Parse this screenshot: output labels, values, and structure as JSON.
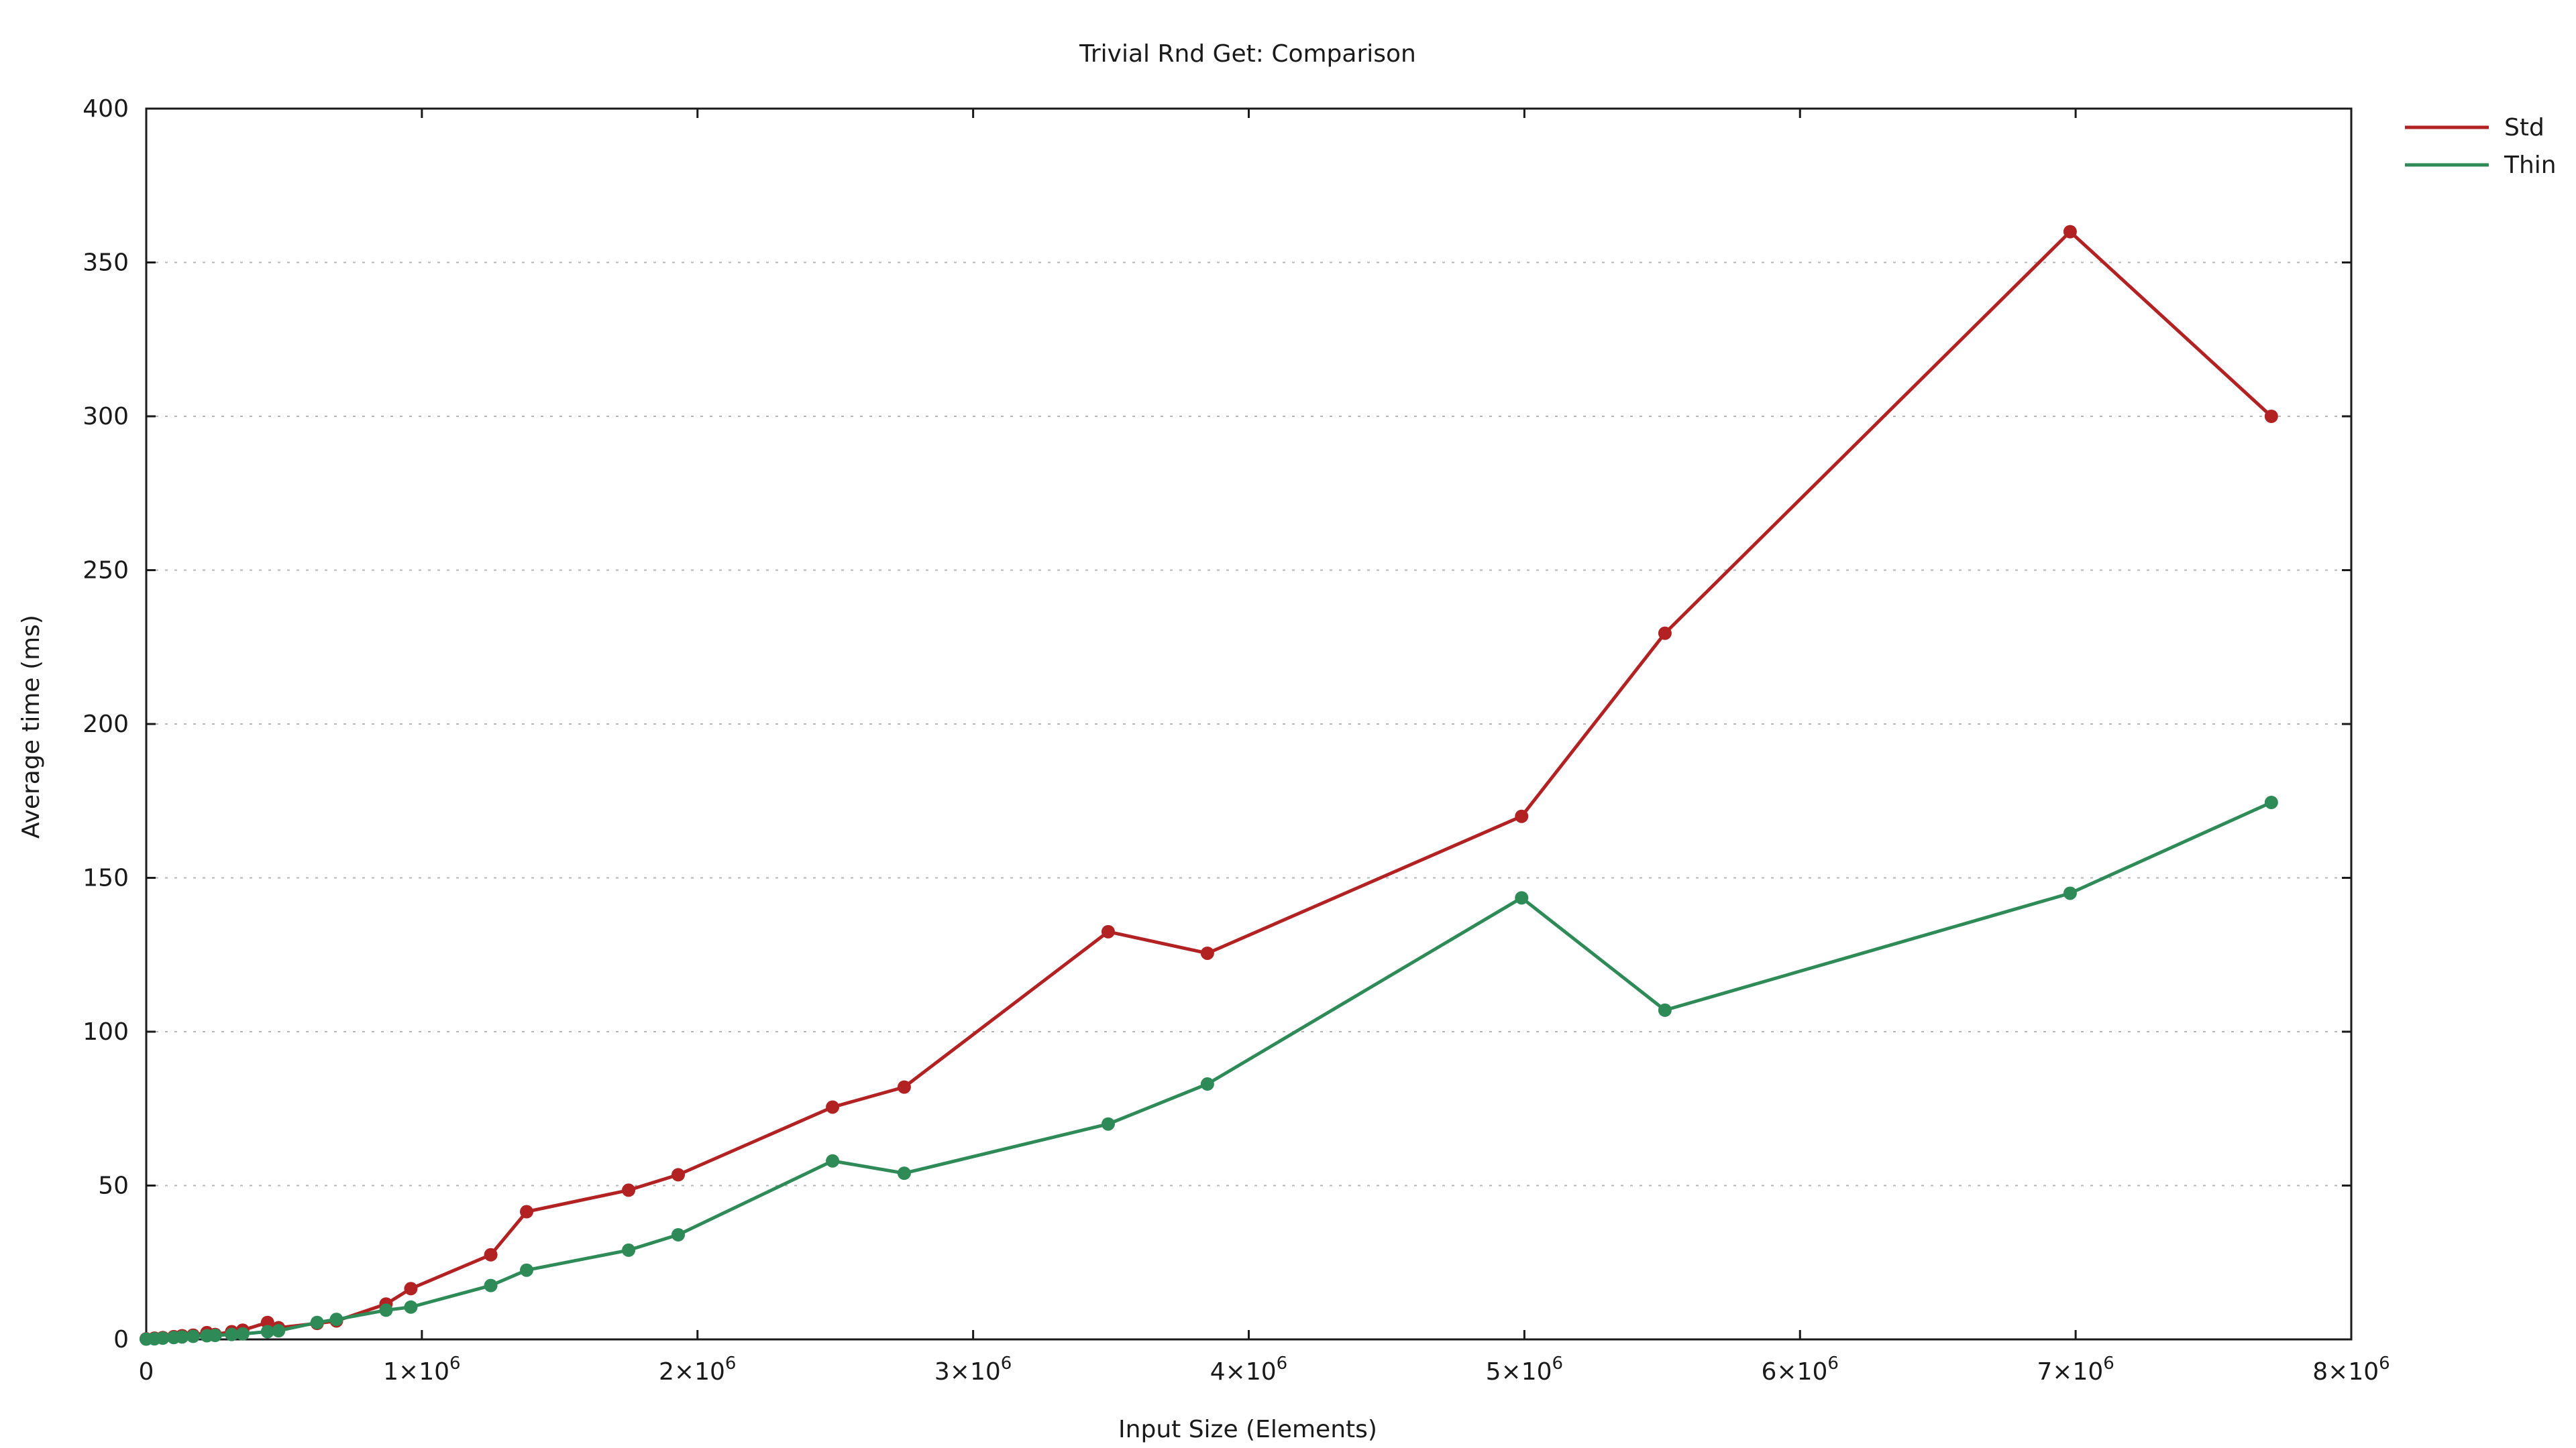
{
  "chart_data": {
    "type": "line",
    "title": "Trivial Rnd Get: Comparison",
    "xlabel": "Input Size (Elements)",
    "ylabel": "Average time (ms)",
    "xlim": [
      0,
      8000000
    ],
    "ylim": [
      0,
      400
    ],
    "grid": "horizontal dotted",
    "legend_position": "top-right outside",
    "x_ticks": [
      {
        "value": 0,
        "base": "0",
        "exp": ""
      },
      {
        "value": 1000000,
        "base": "1×10",
        "exp": "6"
      },
      {
        "value": 2000000,
        "base": "2×10",
        "exp": "6"
      },
      {
        "value": 3000000,
        "base": "3×10",
        "exp": "6"
      },
      {
        "value": 4000000,
        "base": "4×10",
        "exp": "6"
      },
      {
        "value": 5000000,
        "base": "5×10",
        "exp": "6"
      },
      {
        "value": 6000000,
        "base": "6×10",
        "exp": "6"
      },
      {
        "value": 7000000,
        "base": "7×10",
        "exp": "6"
      },
      {
        "value": 8000000,
        "base": "8×10",
        "exp": "6"
      }
    ],
    "y_ticks": [
      0,
      50,
      100,
      150,
      200,
      250,
      300,
      350,
      400
    ],
    "series": [
      {
        "name": "Std",
        "color": "#b22222",
        "points": [
          [
            0,
            0.2
          ],
          [
            30000,
            0.4
          ],
          [
            60000,
            0.6
          ],
          [
            100000,
            0.9
          ],
          [
            130000,
            1.2
          ],
          [
            170000,
            1.4
          ],
          [
            220000,
            2.2
          ],
          [
            250000,
            1.6
          ],
          [
            310000,
            2.5
          ],
          [
            350000,
            3.0
          ],
          [
            440000,
            5.5
          ],
          [
            480000,
            3.8
          ],
          [
            620000,
            5.2
          ],
          [
            690000,
            6.0
          ],
          [
            870000,
            11.5
          ],
          [
            960000,
            16.5
          ],
          [
            1250000,
            27.5
          ],
          [
            1380000,
            41.5
          ],
          [
            1750000,
            48.5
          ],
          [
            1930000,
            53.5
          ],
          [
            2490000,
            75.5
          ],
          [
            2750000,
            82.0
          ],
          [
            3490000,
            132.5
          ],
          [
            3850000,
            125.5
          ],
          [
            4990000,
            170.0
          ],
          [
            5510000,
            229.5
          ],
          [
            6980000,
            360.0
          ],
          [
            7710000,
            300.0
          ]
        ]
      },
      {
        "name": "Thin",
        "color": "#2e8b57",
        "points": [
          [
            0,
            0.1
          ],
          [
            30000,
            0.2
          ],
          [
            60000,
            0.4
          ],
          [
            100000,
            0.6
          ],
          [
            130000,
            0.8
          ],
          [
            170000,
            1.0
          ],
          [
            220000,
            1.2
          ],
          [
            250000,
            1.3
          ],
          [
            310000,
            1.6
          ],
          [
            350000,
            1.8
          ],
          [
            440000,
            2.5
          ],
          [
            480000,
            2.8
          ],
          [
            620000,
            5.5
          ],
          [
            690000,
            6.5
          ],
          [
            870000,
            9.5
          ],
          [
            960000,
            10.5
          ],
          [
            1250000,
            17.5
          ],
          [
            1380000,
            22.5
          ],
          [
            1750000,
            29.0
          ],
          [
            1930000,
            34.0
          ],
          [
            2490000,
            58.0
          ],
          [
            2750000,
            54.0
          ],
          [
            3490000,
            70.0
          ],
          [
            3850000,
            83.0
          ],
          [
            4990000,
            143.5
          ],
          [
            5510000,
            107.0
          ],
          [
            6980000,
            145.0
          ],
          [
            7710000,
            174.5
          ]
        ]
      }
    ]
  }
}
